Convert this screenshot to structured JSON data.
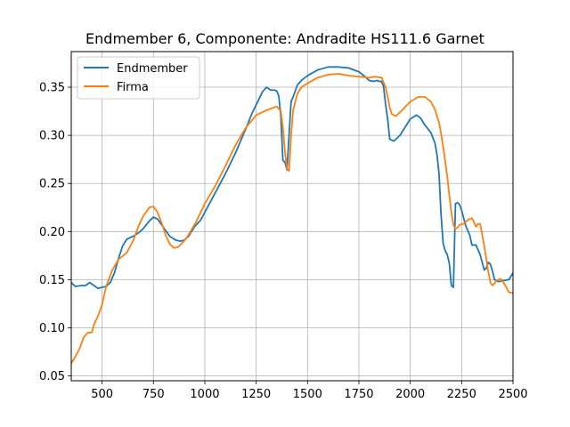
{
  "chart_data": {
    "type": "line",
    "title": "Endmember 6, Componente: Andradite HS111.6  Garnet",
    "xlabel": "",
    "ylabel": "",
    "xlim": [
      350,
      2500
    ],
    "ylim": [
      0.045,
      0.387
    ],
    "grid": true,
    "legend_position": "top-left",
    "xticks": [
      500,
      750,
      1000,
      1250,
      1500,
      1750,
      2000,
      2250,
      2500
    ],
    "yticks": [
      0.05,
      0.1,
      0.15,
      0.2,
      0.25,
      0.3,
      0.35
    ],
    "ytick_labels": [
      "0.05",
      "0.10",
      "0.15",
      "0.20",
      "0.25",
      "0.30",
      "0.35"
    ],
    "series": [
      {
        "name": "Endmember",
        "color": "#1f77b4",
        "x": [
          350,
          370,
          400,
          420,
          440,
          460,
          480,
          500,
          520,
          540,
          560,
          580,
          600,
          620,
          650,
          680,
          700,
          730,
          750,
          770,
          800,
          830,
          860,
          880,
          900,
          920,
          950,
          980,
          1000,
          1050,
          1100,
          1150,
          1200,
          1230,
          1260,
          1280,
          1300,
          1320,
          1340,
          1350,
          1360,
          1370,
          1380,
          1390,
          1400,
          1410,
          1420,
          1430,
          1450,
          1470,
          1500,
          1550,
          1600,
          1650,
          1700,
          1750,
          1780,
          1800,
          1820,
          1840,
          1850,
          1860,
          1870,
          1880,
          1890,
          1900,
          1920,
          1950,
          2000,
          2030,
          2050,
          2070,
          2100,
          2120,
          2130,
          2140,
          2150,
          2160,
          2170,
          2180,
          2190,
          2200,
          2210,
          2220,
          2230,
          2240,
          2250,
          2270,
          2290,
          2300,
          2320,
          2340,
          2350,
          2360,
          2370,
          2380,
          2390,
          2400,
          2410,
          2420,
          2430,
          2450,
          2480,
          2500
        ],
        "y": [
          0.147,
          0.143,
          0.144,
          0.144,
          0.147,
          0.144,
          0.141,
          0.142,
          0.143,
          0.147,
          0.157,
          0.172,
          0.185,
          0.192,
          0.195,
          0.199,
          0.203,
          0.211,
          0.215,
          0.213,
          0.204,
          0.195,
          0.191,
          0.19,
          0.191,
          0.195,
          0.205,
          0.212,
          0.22,
          0.24,
          0.26,
          0.282,
          0.307,
          0.323,
          0.336,
          0.345,
          0.35,
          0.347,
          0.347,
          0.346,
          0.341,
          0.32,
          0.274,
          0.272,
          0.264,
          0.3,
          0.335,
          0.34,
          0.352,
          0.357,
          0.362,
          0.368,
          0.371,
          0.371,
          0.37,
          0.366,
          0.361,
          0.357,
          0.356,
          0.357,
          0.356,
          0.356,
          0.351,
          0.332,
          0.317,
          0.296,
          0.294,
          0.3,
          0.317,
          0.321,
          0.318,
          0.311,
          0.303,
          0.292,
          0.28,
          0.26,
          0.217,
          0.188,
          0.18,
          0.176,
          0.167,
          0.144,
          0.142,
          0.229,
          0.23,
          0.228,
          0.222,
          0.206,
          0.196,
          0.186,
          0.186,
          0.176,
          0.168,
          0.16,
          0.162,
          0.168,
          0.166,
          0.159,
          0.15,
          0.149,
          0.148,
          0.149,
          0.15,
          0.157
        ],
        "y_note": ""
      },
      {
        "name": "Firma",
        "color": "#ff7f0e",
        "x": [
          350,
          370,
          390,
          410,
          430,
          450,
          460,
          480,
          500,
          520,
          550,
          580,
          620,
          650,
          680,
          700,
          730,
          750,
          770,
          790,
          810,
          830,
          850,
          870,
          890,
          910,
          930,
          960,
          1000,
          1050,
          1100,
          1150,
          1200,
          1250,
          1300,
          1350,
          1370,
          1380,
          1390,
          1400,
          1410,
          1420,
          1430,
          1450,
          1470,
          1500,
          1550,
          1600,
          1650,
          1700,
          1750,
          1800,
          1830,
          1860,
          1880,
          1890,
          1900,
          1910,
          1930,
          1960,
          2000,
          2040,
          2070,
          2100,
          2120,
          2140,
          2150,
          2160,
          2170,
          2180,
          2190,
          2200,
          2210,
          2220,
          2230,
          2240,
          2260,
          2280,
          2300,
          2310,
          2320,
          2330,
          2340,
          2350,
          2360,
          2370,
          2380,
          2390,
          2400,
          2410,
          2420,
          2440,
          2460,
          2480,
          2500
        ],
        "y": [
          0.063,
          0.07,
          0.078,
          0.09,
          0.095,
          0.095,
          0.103,
          0.112,
          0.124,
          0.143,
          0.16,
          0.171,
          0.178,
          0.19,
          0.207,
          0.216,
          0.225,
          0.226,
          0.22,
          0.209,
          0.196,
          0.187,
          0.183,
          0.184,
          0.188,
          0.193,
          0.2,
          0.211,
          0.229,
          0.247,
          0.268,
          0.29,
          0.308,
          0.321,
          0.326,
          0.33,
          0.325,
          0.308,
          0.283,
          0.265,
          0.263,
          0.3,
          0.326,
          0.343,
          0.35,
          0.354,
          0.36,
          0.363,
          0.364,
          0.362,
          0.361,
          0.36,
          0.361,
          0.36,
          0.35,
          0.34,
          0.329,
          0.322,
          0.32,
          0.326,
          0.335,
          0.34,
          0.34,
          0.335,
          0.327,
          0.313,
          0.302,
          0.288,
          0.273,
          0.257,
          0.238,
          0.22,
          0.207,
          0.203,
          0.204,
          0.207,
          0.208,
          0.212,
          0.214,
          0.21,
          0.205,
          0.208,
          0.208,
          0.197,
          0.185,
          0.172,
          0.158,
          0.147,
          0.144,
          0.146,
          0.149,
          0.151,
          0.145,
          0.137,
          0.136
        ]
      }
    ]
  }
}
